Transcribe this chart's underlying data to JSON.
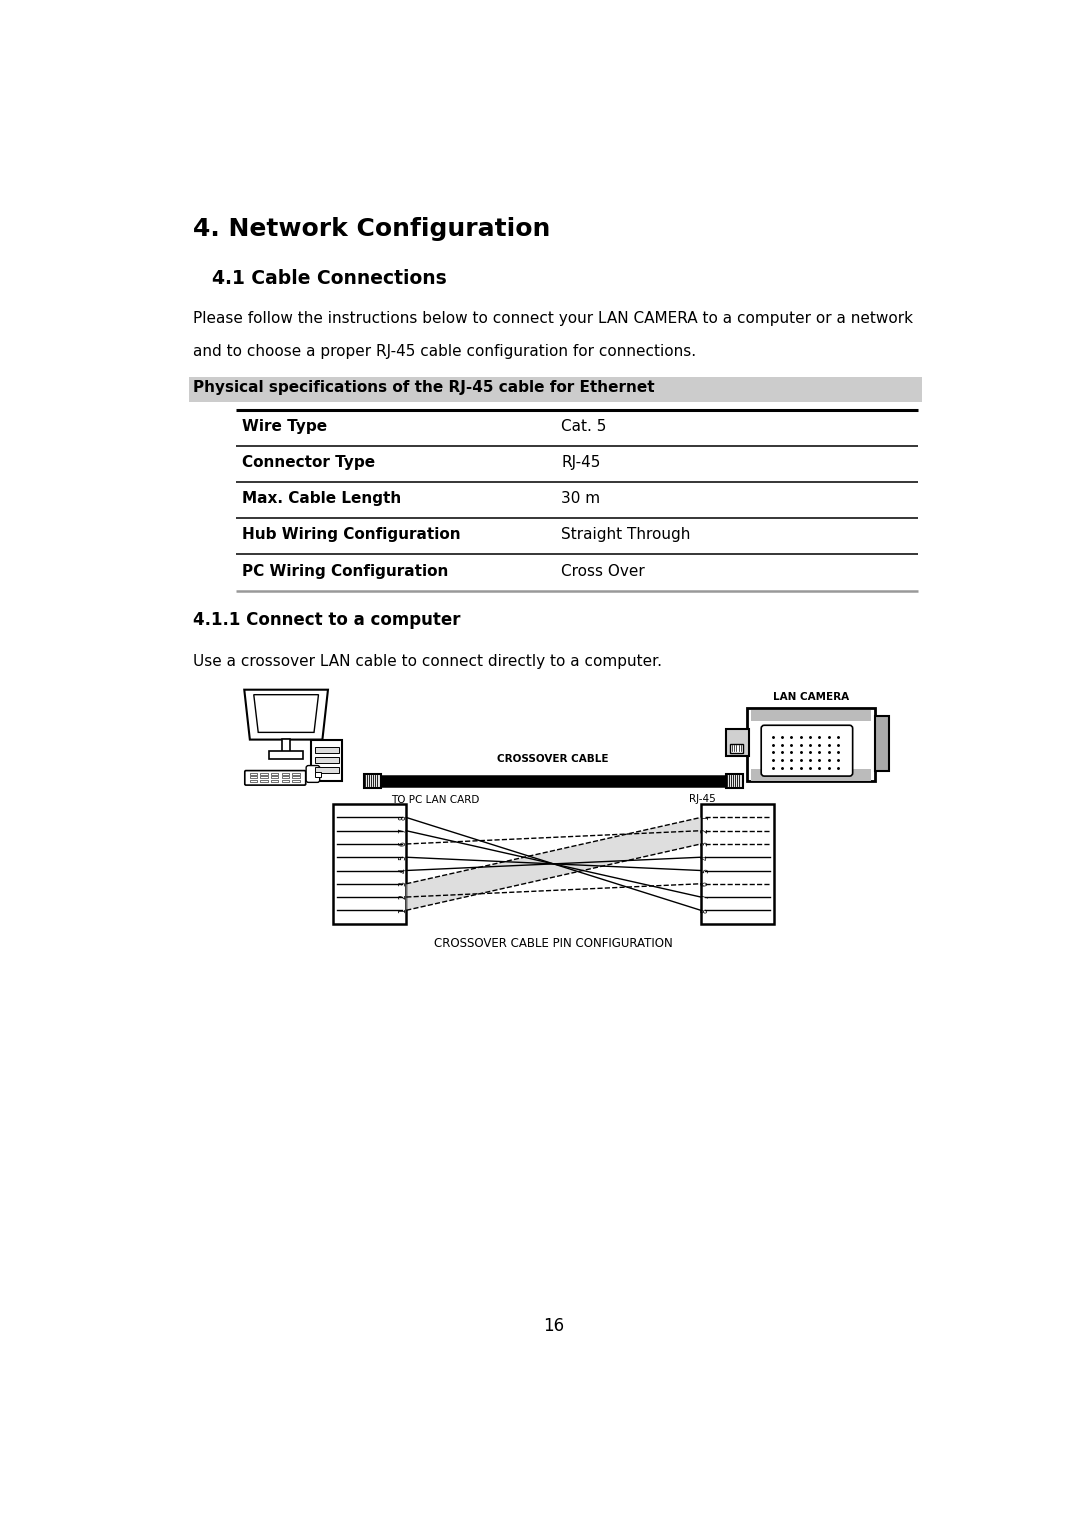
{
  "page_title": "4. Network Configuration",
  "section_title": "4.1 Cable Connections",
  "intro_text_1": "Please follow the instructions below to connect your LAN CAMERA to a computer or a network",
  "intro_text_2": "and to choose a proper RJ-45 cable configuration for connections.",
  "physical_spec_header": "Physical specifications of the RJ-45 cable for Ethernet",
  "table_rows": [
    [
      "Wire Type",
      "Cat. 5"
    ],
    [
      "Connector Type",
      "RJ-45"
    ],
    [
      "Max. Cable Length",
      "30 m"
    ],
    [
      "Hub Wiring Configuration",
      "Straight Through"
    ],
    [
      "PC Wiring Configuration",
      "Cross Over"
    ]
  ],
  "subsection_title": "4.1.1 Connect to a computer",
  "subsection_text": "Use a crossover LAN cable to connect directly to a computer.",
  "label_crossover_cable": "CROSSOVER CABLE",
  "label_rj45": "RJ-45",
  "label_to_pc_lan_card": "TO PC LAN CARD",
  "label_lan_camera": "LAN CAMERA",
  "label_pin_config": "CROSSOVER CABLE PIN CONFIGURATION",
  "page_number": "16",
  "bg_color": "#ffffff",
  "text_color": "#000000",
  "header_bg": "#cccccc"
}
